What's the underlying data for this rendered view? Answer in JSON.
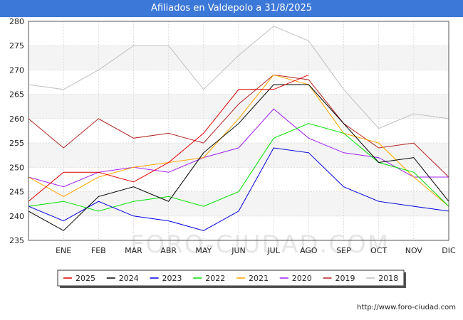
{
  "chart_data": {
    "type": "line",
    "title": "Afiliados en Valdepolo a 31/8/2025",
    "categories": [
      "",
      "ENE",
      "FEB",
      "MAR",
      "ABR",
      "MAY",
      "JUN",
      "JUL",
      "AGO",
      "SEP",
      "OCT",
      "NOV",
      "DIC"
    ],
    "ylim": [
      235,
      280
    ],
    "yticks": [
      235,
      240,
      245,
      250,
      255,
      260,
      265,
      270,
      275,
      280
    ],
    "grid": true,
    "legend_position": "bottom",
    "series": [
      {
        "name": "2025",
        "color": "#e00000",
        "values": [
          243,
          249,
          249,
          247,
          251,
          257,
          266,
          266,
          269,
          null,
          null,
          null,
          null
        ]
      },
      {
        "name": "2024",
        "color": "#000000",
        "values": [
          241,
          237,
          244,
          246,
          243,
          253,
          259,
          267,
          267,
          259,
          251,
          252,
          243
        ]
      },
      {
        "name": "2023",
        "color": "#0000dd",
        "values": [
          242,
          239,
          243,
          240,
          239,
          237,
          241,
          254,
          253,
          246,
          243,
          242,
          241
        ]
      },
      {
        "name": "2022",
        "color": "#00e000",
        "values": [
          242,
          243,
          241,
          243,
          244,
          242,
          245,
          256,
          259,
          257,
          251,
          249,
          242
        ]
      },
      {
        "name": "2021",
        "color": "#ffa500",
        "values": [
          248,
          244,
          248,
          250,
          251,
          252,
          260,
          269,
          267,
          257,
          255,
          248,
          242
        ]
      },
      {
        "name": "2020",
        "color": "#a020f0",
        "values": [
          248,
          246,
          249,
          250,
          249,
          252,
          254,
          262,
          256,
          253,
          252,
          248,
          248
        ]
      },
      {
        "name": "2019",
        "color": "#b22222",
        "values": [
          260,
          254,
          260,
          256,
          257,
          255,
          263,
          269,
          268,
          259,
          254,
          255,
          248
        ]
      },
      {
        "name": "2018",
        "color": "#c0c0c0",
        "values": [
          267,
          266,
          270,
          275,
          275,
          266,
          273,
          279,
          276,
          266,
          258,
          261,
          260
        ]
      }
    ]
  },
  "footer": {
    "url": "http://www.foro-ciudad.com"
  },
  "watermark": "FORO-CIUDAD.COM"
}
